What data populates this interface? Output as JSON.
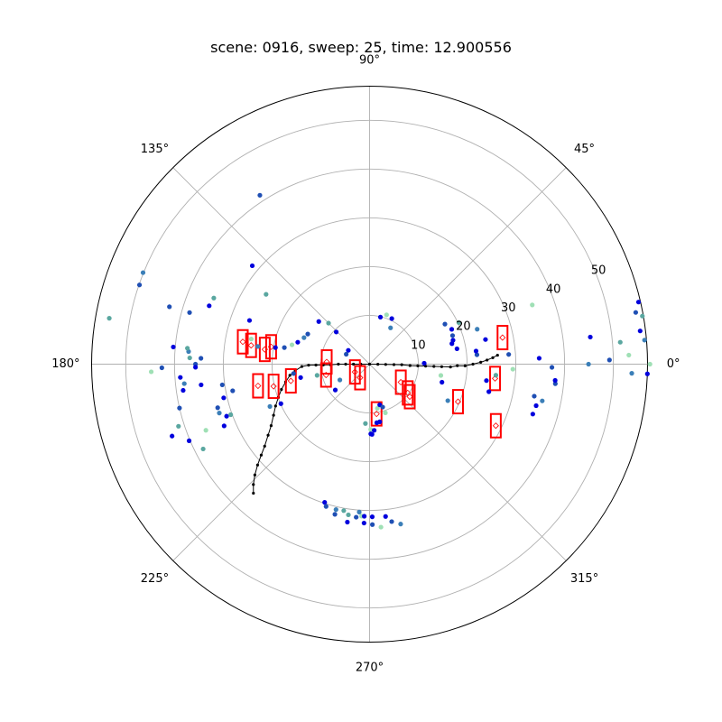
{
  "chart_data": {
    "type": "scatter",
    "projection": "polar",
    "title": "scene: 0916, sweep: 25, time: 12.900556",
    "theta_direction": "counterclockwise",
    "theta_zero": "east",
    "theta_ticks": [
      0,
      45,
      90,
      135,
      180,
      225,
      270,
      315
    ],
    "theta_tick_labels": [
      "0°",
      "45°",
      "90°",
      "135°",
      "180°",
      "225°",
      "270°",
      "315°"
    ],
    "r_ticks": [
      10,
      20,
      30,
      40,
      50
    ],
    "r_tick_labels": [
      "10",
      "20",
      "30",
      "40",
      "50"
    ],
    "r_tick_label_angle": 22.5,
    "rlim": [
      0,
      57
    ],
    "grid": true,
    "colors": {
      "grid": "#b0b0b0",
      "frame": "#000000",
      "box": "#ff0000",
      "trajectory": "#000000",
      "point_palette": [
        "#0000dd",
        "#1f4fb4",
        "#3b7fb8",
        "#5aa7a0",
        "#9fe0b5"
      ]
    },
    "radar_points": [
      {
        "r": 11.2,
        "theta": 1,
        "c": 0
      },
      {
        "r": 22.1,
        "theta": 5,
        "c": 1
      },
      {
        "r": 22.0,
        "theta": 7,
        "c": 0
      },
      {
        "r": 28.6,
        "theta": 4,
        "c": 1
      },
      {
        "r": 34.8,
        "theta": 2,
        "c": 0
      },
      {
        "r": 44.9,
        "theta": 0,
        "c": 2
      },
      {
        "r": 53.8,
        "theta": -2,
        "c": 2
      },
      {
        "r": 57.0,
        "theta": -2,
        "c": 0
      },
      {
        "r": 57.5,
        "theta": 0,
        "c": 4
      },
      {
        "r": 56.6,
        "theta": 13,
        "c": 0
      },
      {
        "r": 55.6,
        "theta": 11,
        "c": 1
      },
      {
        "r": 56.8,
        "theta": 10,
        "c": 3
      },
      {
        "r": 55.9,
        "theta": 7,
        "c": 0
      },
      {
        "r": 56.6,
        "theta": 5,
        "c": 2
      },
      {
        "r": 53.2,
        "theta": 2,
        "c": 4
      },
      {
        "r": 51.6,
        "theta": 5,
        "c": 3
      },
      {
        "r": 49.2,
        "theta": 1,
        "c": 1
      },
      {
        "r": 45.6,
        "theta": 7,
        "c": 0
      },
      {
        "r": 38.3,
        "theta": -6,
        "c": 1
      },
      {
        "r": 34.4,
        "theta": -11,
        "c": 1
      },
      {
        "r": 37.4,
        "theta": -1,
        "c": 1
      },
      {
        "r": 29.4,
        "theta": -2,
        "c": 4
      },
      {
        "r": 35.5,
        "theta": 20,
        "c": 4
      },
      {
        "r": 18.2,
        "theta": 10,
        "c": 0
      },
      {
        "r": 17.4,
        "theta": 14,
        "c": 0
      },
      {
        "r": 17.8,
        "theta": 16,
        "c": 0
      },
      {
        "r": 18.0,
        "theta": 19,
        "c": 1
      },
      {
        "r": 18.3,
        "theta": 23,
        "c": 0
      },
      {
        "r": 17.5,
        "theta": 28,
        "c": 1
      },
      {
        "r": 20.2,
        "theta": 25,
        "c": 3
      },
      {
        "r": 23.2,
        "theta": 18,
        "c": 2
      },
      {
        "r": 24.3,
        "theta": 12,
        "c": 0
      },
      {
        "r": 14.8,
        "theta": -9,
        "c": 4
      },
      {
        "r": 15.3,
        "theta": -14,
        "c": 0
      },
      {
        "r": 17.7,
        "theta": -25,
        "c": 2
      },
      {
        "r": 10.4,
        "theta": 64,
        "c": 0
      },
      {
        "r": 10.7,
        "theta": 71,
        "c": 4
      },
      {
        "r": 9.9,
        "theta": 77,
        "c": 0
      },
      {
        "r": 8.6,
        "theta": 60,
        "c": 2
      },
      {
        "r": 5.2,
        "theta": 147,
        "c": 0
      },
      {
        "r": 5.2,
        "theta": 157,
        "c": 1
      },
      {
        "r": 9.5,
        "theta": 136,
        "c": 0
      },
      {
        "r": 11.9,
        "theta": 135,
        "c": 3
      },
      {
        "r": 13.6,
        "theta": 140,
        "c": 0
      },
      {
        "r": 14.1,
        "theta": 154,
        "c": 1
      },
      {
        "r": 14.5,
        "theta": 158,
        "c": 2
      },
      {
        "r": 15.4,
        "theta": 163,
        "c": 0
      },
      {
        "r": 16.4,
        "theta": 166,
        "c": 4
      },
      {
        "r": 17.8,
        "theta": 169,
        "c": 1
      },
      {
        "r": 19.6,
        "theta": 170,
        "c": 0
      },
      {
        "r": 23.2,
        "theta": 171,
        "c": 2
      },
      {
        "r": 24.8,
        "theta": 168,
        "c": 4
      },
      {
        "r": 26.2,
        "theta": 160,
        "c": 0
      },
      {
        "r": 25.6,
        "theta": 146,
        "c": 3
      },
      {
        "r": 31.4,
        "theta": 140,
        "c": 0
      },
      {
        "r": 41.3,
        "theta": 123,
        "c": 1
      },
      {
        "r": 34.7,
        "theta": 157,
        "c": 3
      },
      {
        "r": 35.0,
        "theta": 160,
        "c": 0
      },
      {
        "r": 38.4,
        "theta": 164,
        "c": 1
      },
      {
        "r": 42.7,
        "theta": 164,
        "c": 1
      },
      {
        "r": 49.9,
        "theta": 161,
        "c": 1
      },
      {
        "r": 50.1,
        "theta": 158,
        "c": 2
      },
      {
        "r": 54.2,
        "theta": 170,
        "c": 3
      },
      {
        "r": 37.2,
        "theta": 176,
        "c": 2
      },
      {
        "r": 37.5,
        "theta": 175,
        "c": 3
      },
      {
        "r": 40.4,
        "theta": 175,
        "c": 0
      },
      {
        "r": 34.6,
        "theta": 178,
        "c": 1
      },
      {
        "r": 36.9,
        "theta": 178,
        "c": 3
      },
      {
        "r": 35.7,
        "theta": 180,
        "c": 1
      },
      {
        "r": 35.7,
        "theta": 181,
        "c": 0
      },
      {
        "r": 42.6,
        "theta": 181,
        "c": 1
      },
      {
        "r": 44.8,
        "theta": 182,
        "c": 4
      },
      {
        "r": 38.9,
        "theta": 184,
        "c": 0
      },
      {
        "r": 38.2,
        "theta": 186,
        "c": 2
      },
      {
        "r": 38.6,
        "theta": 188,
        "c": 0
      },
      {
        "r": 34.8,
        "theta": 187,
        "c": 0
      },
      {
        "r": 30.5,
        "theta": 188,
        "c": 1
      },
      {
        "r": 28.6,
        "theta": 191,
        "c": 1
      },
      {
        "r": 30.7,
        "theta": 193,
        "c": 0
      },
      {
        "r": 32.4,
        "theta": 196,
        "c": 1
      },
      {
        "r": 32.4,
        "theta": 198,
        "c": 2
      },
      {
        "r": 31.2,
        "theta": 200,
        "c": 0
      },
      {
        "r": 30.3,
        "theta": 200,
        "c": 3
      },
      {
        "r": 32.4,
        "theta": 203,
        "c": 0
      },
      {
        "r": 22.2,
        "theta": 203,
        "c": 2
      },
      {
        "r": 19.9,
        "theta": 204,
        "c": 0
      },
      {
        "r": 15.7,
        "theta": 187,
        "c": 1
      },
      {
        "r": 14.4,
        "theta": 191,
        "c": 0
      },
      {
        "r": 11.0,
        "theta": 192,
        "c": 3
      },
      {
        "r": 8.8,
        "theta": 217,
        "c": 0
      },
      {
        "r": 6.9,
        "theta": 208,
        "c": 2
      },
      {
        "r": 36.2,
        "theta": 202,
        "c": 4
      },
      {
        "r": 40.0,
        "theta": 193,
        "c": 1
      },
      {
        "r": 41.2,
        "theta": 198,
        "c": 3
      },
      {
        "r": 43.1,
        "theta": 200,
        "c": 0
      },
      {
        "r": 40.2,
        "theta": 203,
        "c": 0
      },
      {
        "r": 38.3,
        "theta": 207,
        "c": 3
      },
      {
        "r": 9.2,
        "theta": 280,
        "c": 4
      },
      {
        "r": 8.6,
        "theta": 284,
        "c": 0
      },
      {
        "r": 9.2,
        "theta": 287,
        "c": 1
      },
      {
        "r": 10.5,
        "theta": 288,
        "c": 4
      },
      {
        "r": 12.0,
        "theta": 280,
        "c": 0
      },
      {
        "r": 12.1,
        "theta": 277,
        "c": 0
      },
      {
        "r": 12.2,
        "theta": 266,
        "c": 3
      },
      {
        "r": 13.4,
        "theta": 271,
        "c": 4
      },
      {
        "r": 14.3,
        "theta": 271,
        "c": 0
      },
      {
        "r": 14.4,
        "theta": 272,
        "c": 0
      },
      {
        "r": 13.6,
        "theta": 274,
        "c": 0
      },
      {
        "r": 25.1,
        "theta": 347,
        "c": 0
      },
      {
        "r": 24.2,
        "theta": 352,
        "c": 0
      },
      {
        "r": 26.0,
        "theta": 355,
        "c": 3
      },
      {
        "r": 35.0,
        "theta": 343,
        "c": 0
      },
      {
        "r": 36.2,
        "theta": 348,
        "c": 2
      },
      {
        "r": 35.2,
        "theta": 346,
        "c": 0
      },
      {
        "r": 38.2,
        "theta": 355,
        "c": 0
      },
      {
        "r": 29.8,
        "theta": 252,
        "c": 0
      },
      {
        "r": 30.5,
        "theta": 253,
        "c": 1
      },
      {
        "r": 30.6,
        "theta": 257,
        "c": 2
      },
      {
        "r": 31.6,
        "theta": 257,
        "c": 1
      },
      {
        "r": 30.5,
        "theta": 260,
        "c": 3
      },
      {
        "r": 31.2,
        "theta": 262,
        "c": 3
      },
      {
        "r": 31.2,
        "theta": 267,
        "c": 4
      },
      {
        "r": 32.7,
        "theta": 262,
        "c": 0
      },
      {
        "r": 31.5,
        "theta": 265,
        "c": 1
      },
      {
        "r": 30.4,
        "theta": 266,
        "c": 2
      },
      {
        "r": 31.2,
        "theta": 268,
        "c": 0
      },
      {
        "r": 31.3,
        "theta": 271,
        "c": 0
      },
      {
        "r": 32.6,
        "theta": 268,
        "c": 0
      },
      {
        "r": 32.9,
        "theta": 271,
        "c": 1
      },
      {
        "r": 31.4,
        "theta": 276,
        "c": 0
      },
      {
        "r": 32.6,
        "theta": 278,
        "c": 1
      },
      {
        "r": 33.5,
        "theta": 274,
        "c": 4
      },
      {
        "r": 33.4,
        "theta": 281,
        "c": 2
      }
    ],
    "boxes": [
      {
        "r": 27.8,
        "theta": 11.3,
        "heading": 0
      },
      {
        "r": 8.8,
        "theta": 177,
        "heading": 0
      },
      {
        "r": 20.5,
        "theta": 170,
        "heading": 0
      },
      {
        "r": 21.7,
        "theta": 172,
        "heading": 0
      },
      {
        "r": 24.6,
        "theta": 171,
        "heading": 0
      },
      {
        "r": 26.4,
        "theta": 170,
        "heading": 0
      },
      {
        "r": 9.2,
        "theta": 194,
        "heading": 0
      },
      {
        "r": 16.5,
        "theta": 192,
        "heading": 0
      },
      {
        "r": 20.2,
        "theta": 193,
        "heading": 0
      },
      {
        "r": 23.3,
        "theta": 191,
        "heading": 0
      },
      {
        "r": 3.4,
        "theta": 208,
        "heading": 0
      },
      {
        "r": 3.4,
        "theta": 235,
        "heading": 0
      },
      {
        "r": 9.8,
        "theta": 323,
        "heading": 0
      },
      {
        "r": 10.6,
        "theta": 321,
        "heading": 0
      },
      {
        "r": 7.4,
        "theta": 330,
        "heading": 0
      },
      {
        "r": 10.3,
        "theta": 278,
        "heading": 0
      },
      {
        "r": 19.7,
        "theta": 337,
        "heading": 0
      },
      {
        "r": 25.9,
        "theta": 353.5,
        "heading": 0
      },
      {
        "r": 28.8,
        "theta": 334,
        "heading": 0
      }
    ],
    "trajectory": [
      {
        "r": 0.0,
        "theta": 0
      },
      {
        "r": 1.7,
        "theta": 359
      },
      {
        "r": 3.3,
        "theta": 359
      },
      {
        "r": 5.0,
        "theta": 359
      },
      {
        "r": 6.6,
        "theta": 359
      },
      {
        "r": 8.3,
        "theta": 358
      },
      {
        "r": 9.9,
        "theta": 358
      },
      {
        "r": 11.5,
        "theta": 358
      },
      {
        "r": 13.2,
        "theta": 358
      },
      {
        "r": 14.8,
        "theta": 358
      },
      {
        "r": 16.6,
        "theta": 358
      },
      {
        "r": 18.0,
        "theta": 359
      },
      {
        "r": 19.6,
        "theta": 359
      },
      {
        "r": 21.2,
        "theta": 0
      },
      {
        "r": 22.8,
        "theta": 1
      },
      {
        "r": 24.1,
        "theta": 2
      },
      {
        "r": 25.3,
        "theta": 3
      },
      {
        "r": 26.3,
        "theta": 4
      },
      {
        "r": 1.8,
        "theta": 180
      },
      {
        "r": 3.3,
        "theta": 180
      },
      {
        "r": 4.9,
        "theta": 180
      },
      {
        "r": 6.4,
        "theta": 180
      },
      {
        "r": 8.0,
        "theta": 181
      },
      {
        "r": 9.5,
        "theta": 181
      },
      {
        "r": 11.0,
        "theta": 181
      },
      {
        "r": 12.5,
        "theta": 181
      },
      {
        "r": 13.9,
        "theta": 182
      },
      {
        "r": 15.3,
        "theta": 185
      },
      {
        "r": 16.5,
        "theta": 188
      },
      {
        "r": 17.6,
        "theta": 192
      },
      {
        "r": 18.8,
        "theta": 196
      },
      {
        "r": 19.9,
        "theta": 200
      },
      {
        "r": 21.1,
        "theta": 204
      },
      {
        "r": 22.3,
        "theta": 208
      },
      {
        "r": 23.8,
        "theta": 212
      },
      {
        "r": 25.4,
        "theta": 215
      },
      {
        "r": 27.3,
        "theta": 218
      },
      {
        "r": 29.0,
        "theta": 220
      },
      {
        "r": 30.9,
        "theta": 222
      },
      {
        "r": 32.7,
        "theta": 224
      },
      {
        "r": 34.3,
        "theta": 226
      },
      {
        "r": 35.6,
        "theta": 228
      }
    ]
  }
}
